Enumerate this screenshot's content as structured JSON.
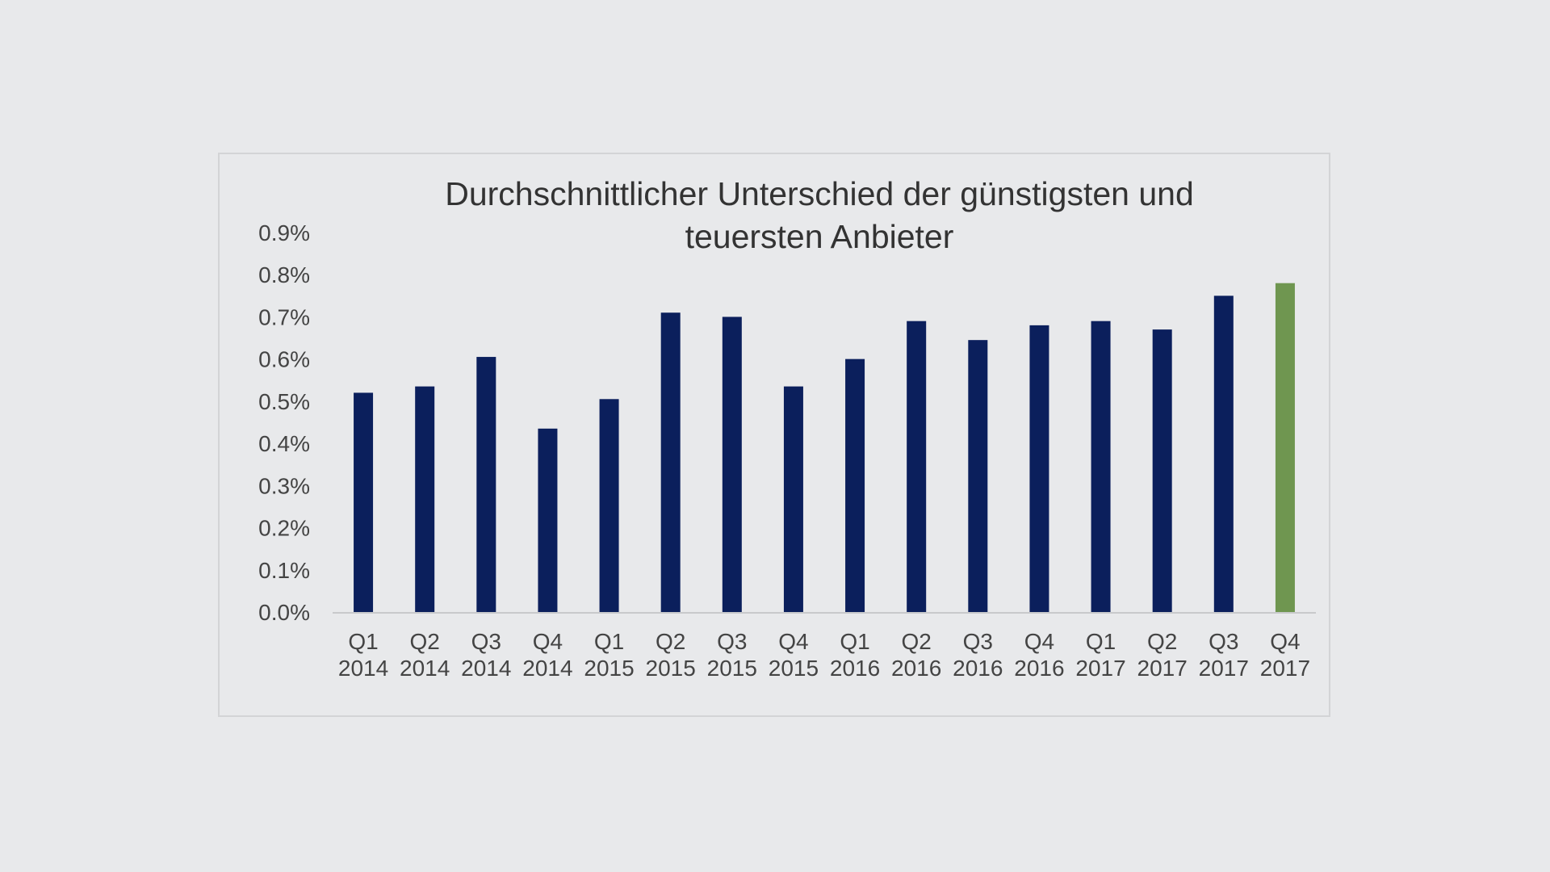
{
  "chart_data": {
    "type": "bar",
    "title_lines": [
      "Durchschnittlicher Unterschied der günstigsten und",
      "teuersten Anbieter"
    ],
    "categories": [
      [
        "Q1",
        "2014"
      ],
      [
        "Q2",
        "2014"
      ],
      [
        "Q3",
        "2014"
      ],
      [
        "Q4",
        "2014"
      ],
      [
        "Q1",
        "2015"
      ],
      [
        "Q2",
        "2015"
      ],
      [
        "Q3",
        "2015"
      ],
      [
        "Q4",
        "2015"
      ],
      [
        "Q1",
        "2016"
      ],
      [
        "Q2",
        "2016"
      ],
      [
        "Q3",
        "2016"
      ],
      [
        "Q4",
        "2016"
      ],
      [
        "Q1",
        "2017"
      ],
      [
        "Q2",
        "2017"
      ],
      [
        "Q3",
        "2017"
      ],
      [
        "Q4",
        "2017"
      ]
    ],
    "values": [
      0.52,
      0.535,
      0.605,
      0.435,
      0.505,
      0.71,
      0.7,
      0.535,
      0.6,
      0.69,
      0.645,
      0.68,
      0.69,
      0.67,
      0.75,
      0.78
    ],
    "ylim": [
      0,
      0.9
    ],
    "yticks": [
      0,
      0.1,
      0.2,
      0.3,
      0.4,
      0.5,
      0.6,
      0.7,
      0.8,
      0.9
    ],
    "ytick_labels": [
      "0.0%",
      "0.1%",
      "0.2%",
      "0.3%",
      "0.4%",
      "0.5%",
      "0.6%",
      "0.7%",
      "0.8%",
      "0.9%"
    ],
    "xlabel": "",
    "ylabel": "",
    "grid": false,
    "bar_color": "#0b1f5c",
    "highlight_color": "#6f9650",
    "highlight_index": 15,
    "axis_color": "#c8c9cb"
  }
}
